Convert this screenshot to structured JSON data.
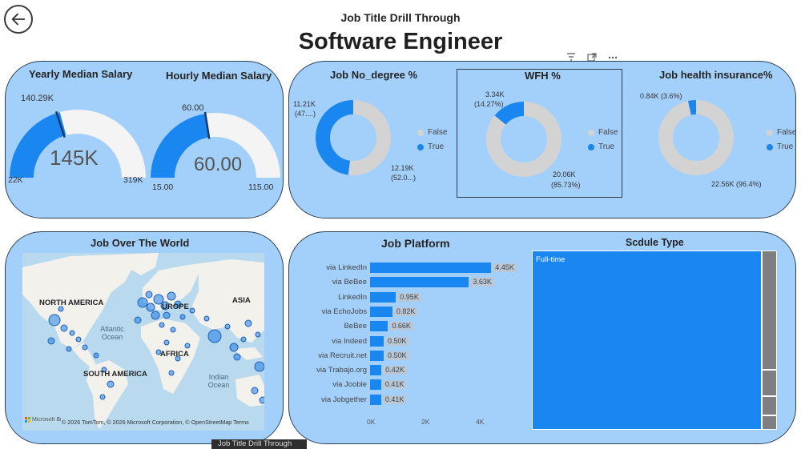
{
  "header": {
    "back_icon": "arrow-left-icon",
    "drill_title": "Job Title Drill Through",
    "page_title": "Software Engineer",
    "tool_icons": [
      "filter-icon",
      "focus-mode-icon",
      "more-options-icon"
    ]
  },
  "colors": {
    "panel_bg": "#a3d0fb",
    "accent": "#1a86f0",
    "gauge_track": "#f2f2f2",
    "donut_false": "#d3d3d3",
    "treemap_other": "#7f7f7f"
  },
  "salary": {
    "yearly": {
      "title": "Yearly Median Salary",
      "value": "145K",
      "target": "140.29K",
      "min": "22K",
      "max": "319K",
      "fill_fraction": 0.415,
      "target_fraction": 0.4
    },
    "hourly": {
      "title": "Hourly Median Salary",
      "value": "60.00",
      "target": "60.00",
      "min": "15.00",
      "max": "115.00",
      "fill_fraction": 0.45,
      "target_fraction": 0.45
    }
  },
  "donuts": [
    {
      "title": "Job No_degree %",
      "true_label": "11.21K",
      "true_pct": "(47....)",
      "false_label": "12.19K",
      "false_pct": "(52.0...)",
      "true_fraction": 0.479
    },
    {
      "title": "WFH %",
      "true_label": "3.34K",
      "true_pct": "(14.27%)",
      "false_label": "20.06K",
      "false_pct": "(85.73%)",
      "true_fraction": 0.1427
    },
    {
      "title": "Job health insurance%",
      "true_label": "0.84K (3.6%)",
      "true_pct": "",
      "false_label": "22.56K (96.4%)",
      "false_pct": "",
      "true_fraction": 0.036
    }
  ],
  "donut_legend": {
    "false": "False",
    "true": "True"
  },
  "map": {
    "title": "Job Over The World",
    "labels": {
      "north_america": "NORTH AMERICA",
      "europe": "UROPE",
      "asia": "ASIA",
      "africa": "AFRICA",
      "south_america": "SOUTH AMERICA"
    },
    "oceans": {
      "atlantic": "Atlantic Ocean",
      "indian": "Indian Ocean"
    },
    "attribution": "© 2026 TomTom, © 2026 Microsoft Corporation, © OpenStreetMap  Terms",
    "logo_text": "Microsoft Bing"
  },
  "job_platform": {
    "title": "Job Platform",
    "axis_ticks": [
      "0K",
      "2K",
      "4K"
    ]
  },
  "chart_data": {
    "type": "bar",
    "orientation": "horizontal",
    "categories": [
      "via LinkedIn",
      "via BeBee",
      "LinkedIn",
      "via EchoJobs",
      "BeBee",
      "via Indeed",
      "via Recruit.net",
      "via Trabajo.org",
      "via Jooble",
      "via Jobgether"
    ],
    "values": [
      4.45,
      3.63,
      0.95,
      0.82,
      0.66,
      0.5,
      0.5,
      0.42,
      0.41,
      0.41
    ],
    "value_labels": [
      "4.45K",
      "3.63K",
      "0.95K",
      "0.82K",
      "0.66K",
      "0.50K",
      "0.50K",
      "0.42K",
      "0.41K",
      "0.41K"
    ],
    "title": "Job Platform",
    "xlim": [
      0,
      5
    ],
    "xticks": [
      0,
      2,
      4
    ],
    "xlabel": "",
    "ylabel": ""
  },
  "schedule": {
    "title": "Scdule Type",
    "main_label": "Full-time",
    "main_share": 0.94
  },
  "tooltip": {
    "text": "Job Title Drill Through"
  }
}
